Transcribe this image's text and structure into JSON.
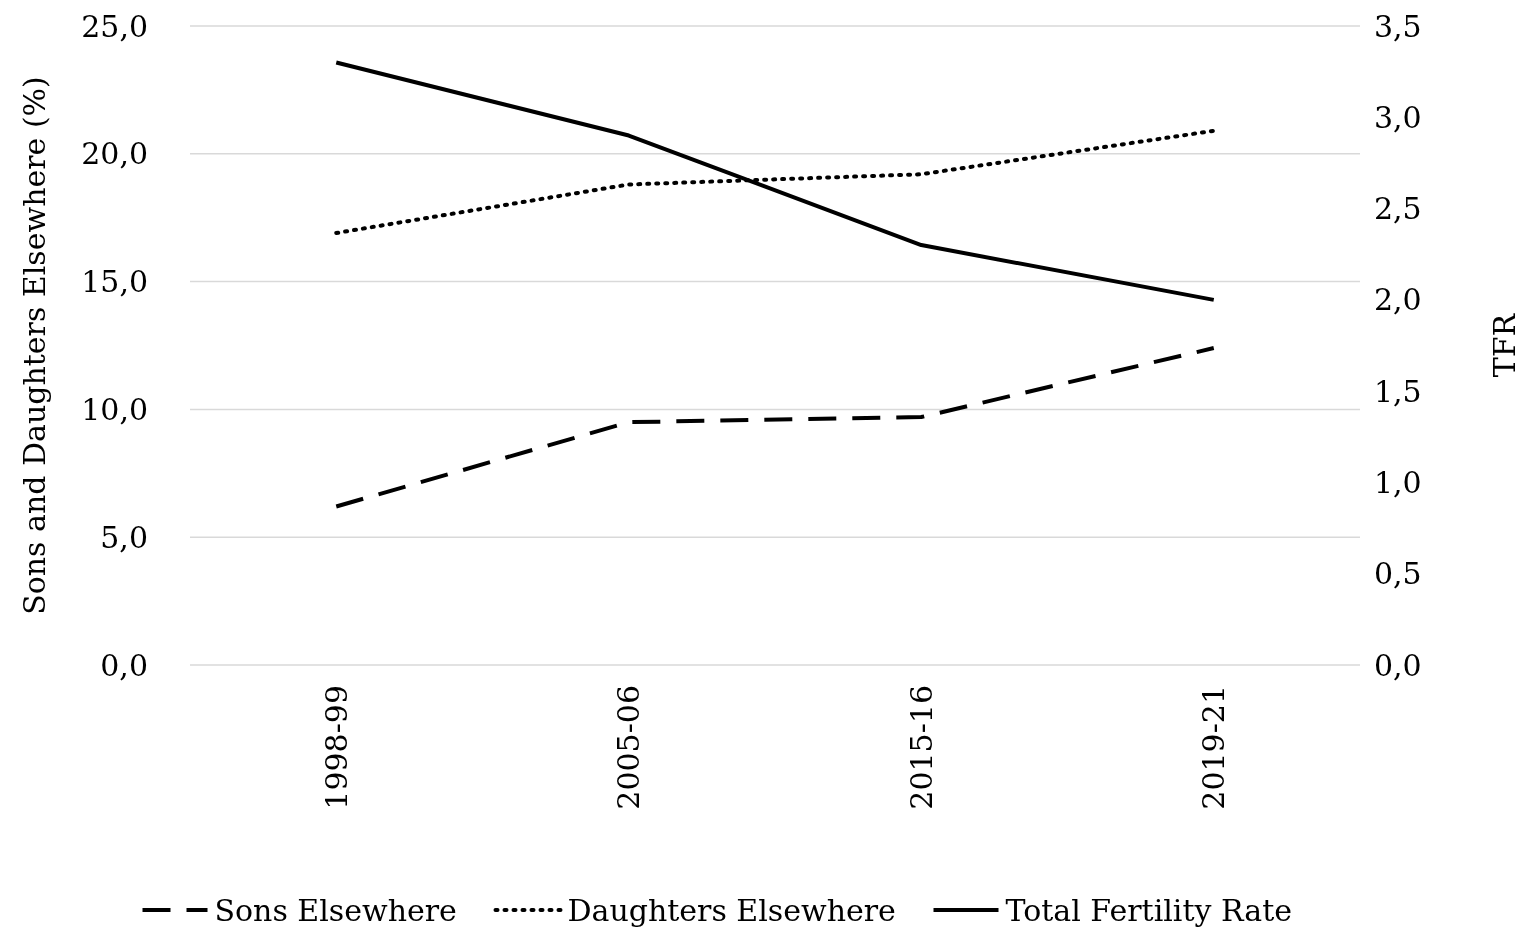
{
  "chart_data": {
    "type": "line",
    "ylabel": "Sons and Daughters Elsewhere (%)",
    "y2label": "TFR",
    "categories": [
      "1998-99",
      "2005-06",
      "2015-16",
      "2019-21"
    ],
    "series": [
      {
        "name": "Sons Elsewhere",
        "color": "#000000",
        "line_style": "dashed",
        "values": [
          6.2,
          9.5,
          9.7,
          12.4
        ]
      },
      {
        "name": "Daughters Elsewhere",
        "color": "#000000",
        "line_style": "dotted",
        "values": [
          16.9,
          18.8,
          19.2,
          20.9
        ]
      },
      {
        "name": "Total Fertility Rate",
        "color": "#000000",
        "line_style": "solid",
        "axis": "y2",
        "values": [
          3.3,
          2.9,
          2.3,
          2.0
        ]
      }
    ],
    "ylim": [
      0,
      25
    ],
    "yticks": [
      {
        "value": 0,
        "label": "0,0"
      },
      {
        "value": 5,
        "label": "5,0"
      },
      {
        "value": 10,
        "label": "10,0"
      },
      {
        "value": 15,
        "label": "15,0"
      },
      {
        "value": 20,
        "label": "20,0"
      },
      {
        "value": 25,
        "label": "25,0"
      }
    ],
    "y2lim": [
      0,
      3.5
    ],
    "y2ticks": [
      {
        "value": 0,
        "label": "0,0"
      },
      {
        "value": 0.5,
        "label": "0,5"
      },
      {
        "value": 1,
        "label": "1,0"
      },
      {
        "value": 1.5,
        "label": "1,5"
      },
      {
        "value": 2,
        "label": "2,0"
      },
      {
        "value": 2.5,
        "label": "2,5"
      },
      {
        "value": 3,
        "label": "3,0"
      },
      {
        "value": 3.5,
        "label": "3,5"
      }
    ],
    "grid": "y",
    "legend": "bottom",
    "marker": "none"
  }
}
